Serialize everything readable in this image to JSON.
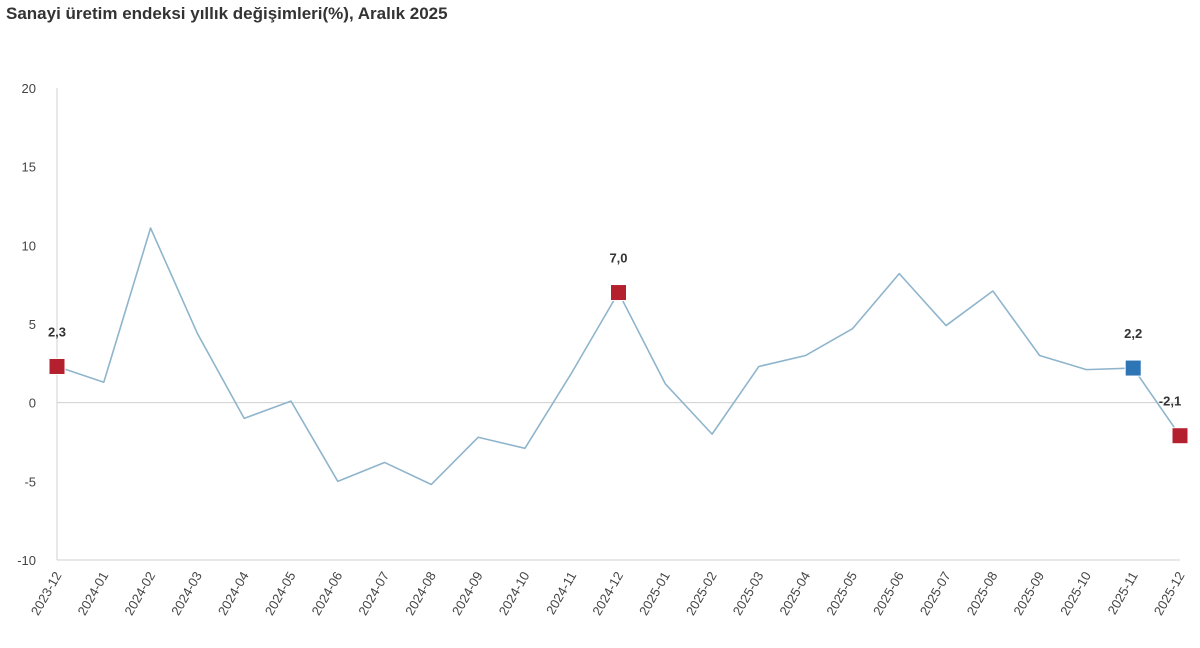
{
  "title": "Sanayi üretim endeksi yıllık değişimleri(%), Aralık 2025",
  "chart_data": {
    "type": "line",
    "title": "Sanayi üretim endeksi yıllık değişimleri(%), Aralık 2025",
    "xlabel": "",
    "ylabel": "",
    "ylim": [
      -10,
      20
    ],
    "yticks": [
      -10,
      -5,
      0,
      5,
      10,
      15,
      20
    ],
    "grid": false,
    "categories": [
      "2023-12",
      "2024-01",
      "2024-02",
      "2024-03",
      "2024-04",
      "2024-05",
      "2024-06",
      "2024-07",
      "2024-08",
      "2024-09",
      "2024-10",
      "2024-11",
      "2024-12",
      "2025-01",
      "2025-02",
      "2025-03",
      "2025-04",
      "2025-05",
      "2025-06",
      "2025-07",
      "2025-08",
      "2025-09",
      "2025-10",
      "2025-11",
      "2025-12"
    ],
    "series": [
      {
        "values": [
          2.3,
          1.3,
          11.1,
          4.4,
          -1.0,
          0.1,
          -5.0,
          -3.8,
          -5.2,
          -2.2,
          -2.9,
          1.9,
          7.0,
          1.2,
          -2.0,
          2.3,
          3.0,
          4.7,
          8.2,
          4.9,
          7.1,
          3.0,
          2.1,
          2.2,
          -2.1
        ],
        "color": "#8fb5cc"
      }
    ],
    "highlights": [
      {
        "category": "2023-12",
        "label": "2,3",
        "color": "#b5202e"
      },
      {
        "category": "2024-12",
        "label": "7,0",
        "color": "#b5202e"
      },
      {
        "category": "2025-11",
        "label": "2,2",
        "color": "#2e75b6"
      },
      {
        "category": "2025-12",
        "label": "-2,1",
        "color": "#b5202e"
      }
    ]
  }
}
